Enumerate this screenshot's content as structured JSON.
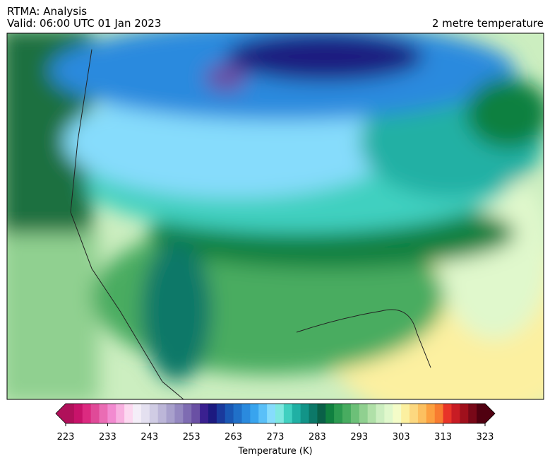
{
  "header": {
    "title_lines": [
      "RTMA: Analysis",
      "Valid: 06:00 UTC 01 Jan 2023"
    ],
    "right_title": "2 metre temperature"
  },
  "colorbar": {
    "label": "Temperature (K)",
    "lim": [
      223,
      323
    ],
    "ticks": [
      223,
      233,
      243,
      253,
      263,
      273,
      283,
      293,
      303,
      313,
      323
    ],
    "colors": [
      "#b0105a",
      "#c8136a",
      "#dc2a80",
      "#e04a98",
      "#ea6cb4",
      "#f28ad0",
      "#f8b0e0",
      "#fcd8f0",
      "#f4eef8",
      "#e4e0f0",
      "#d0cce4",
      "#bcb6d8",
      "#a8a0cc",
      "#9488c0",
      "#7e6cb2",
      "#6a50a4",
      "#3a2090",
      "#1c1a80",
      "#1a3a9c",
      "#1a58b4",
      "#2070c8",
      "#2a8ade",
      "#38a4ee",
      "#5ac0f8",
      "#86dcfc",
      "#7ee8e0",
      "#40d0c0",
      "#20b0a4",
      "#129488",
      "#0c7868",
      "#0a6048",
      "#108040",
      "#2c9a50",
      "#48ac60",
      "#6cc078",
      "#90d090",
      "#b0e0a8",
      "#cceec0",
      "#e0f8cc",
      "#f4fcc8",
      "#fcf0a0",
      "#fcd880",
      "#fcc060",
      "#fca040",
      "#f87c30",
      "#e83428",
      "#c81c24",
      "#a0101c",
      "#780818",
      "#500010"
    ]
  }
}
